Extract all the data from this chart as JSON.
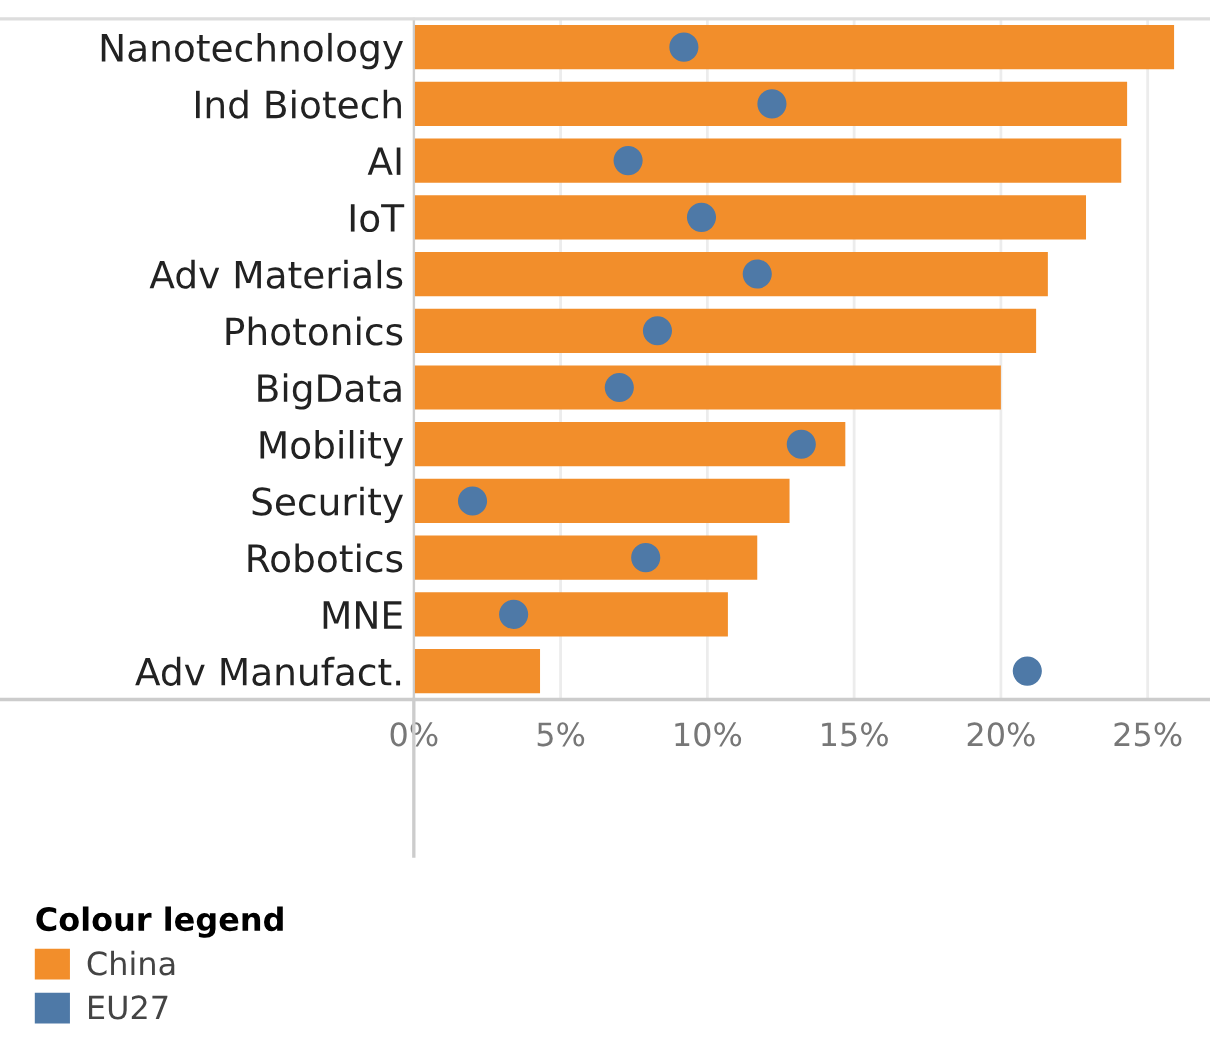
{
  "chart_data": {
    "type": "bar",
    "orientation": "horizontal",
    "legend_title": "Colour legend",
    "legend": "bottom left",
    "grid": "x",
    "categories": [
      "Nanotechnology",
      "Ind Biotech",
      "AI",
      "IoT",
      "Adv Materials",
      "Photonics",
      "BigData",
      "Mobility",
      "Security",
      "Robotics",
      "MNE",
      "Adv Manufact."
    ],
    "series": [
      {
        "name": "China",
        "color": "#f28e2b",
        "values": [
          25.9,
          24.3,
          24.1,
          22.9,
          21.6,
          21.2,
          20.0,
          14.7,
          12.8,
          11.7,
          10.7,
          4.3
        ]
      },
      {
        "name": "EU27",
        "type": "scatter",
        "marker": "circle",
        "color": "#4e79a7",
        "values": [
          9.2,
          12.2,
          7.3,
          9.8,
          11.7,
          8.3,
          7.0,
          13.2,
          2.0,
          7.9,
          3.4,
          20.9
        ]
      }
    ],
    "xlim": [
      0,
      27
    ],
    "xticks": [
      {
        "value": 0,
        "label": "0%"
      },
      {
        "value": 5,
        "label": "5%"
      },
      {
        "value": 10,
        "label": "10%"
      },
      {
        "value": 15,
        "label": "15%"
      },
      {
        "value": 20,
        "label": "20%"
      },
      {
        "value": 25,
        "label": "25%"
      }
    ]
  }
}
